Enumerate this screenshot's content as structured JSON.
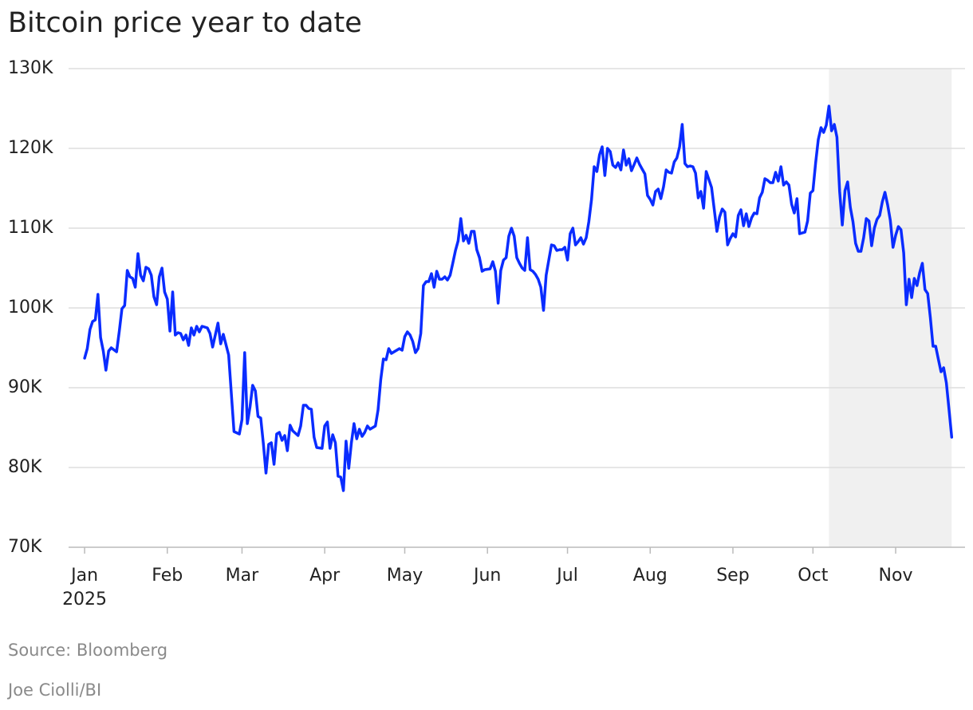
{
  "chart_data": {
    "type": "line",
    "title": "Bitcoin price year to date",
    "source": "Source: Bloomberg",
    "credit": "Joe Ciolli/BI",
    "xtick_year": "2025",
    "color": "#0a2cff",
    "shaded_x": [
      279,
      325
    ],
    "shade_color": "#f0f0f0",
    "grid": true,
    "xlim": [
      -6,
      330
    ],
    "xticks": [
      {
        "value": 0,
        "label": "Jan"
      },
      {
        "value": 31,
        "label": "Feb"
      },
      {
        "value": 59,
        "label": "Mar"
      },
      {
        "value": 90,
        "label": "Apr"
      },
      {
        "value": 120,
        "label": "May"
      },
      {
        "value": 151,
        "label": "Jun"
      },
      {
        "value": 181,
        "label": "Jul"
      },
      {
        "value": 212,
        "label": "Aug"
      },
      {
        "value": 243,
        "label": "Sep"
      },
      {
        "value": 273,
        "label": "Oct"
      },
      {
        "value": 304,
        "label": "Nov"
      }
    ],
    "ylim": [
      70000,
      130000
    ],
    "yticks": [
      {
        "value": 70000,
        "label": "70K"
      },
      {
        "value": 80000,
        "label": "80K"
      },
      {
        "value": 90000,
        "label": "90K"
      },
      {
        "value": 100000,
        "label": "100K"
      },
      {
        "value": 110000,
        "label": "110K"
      },
      {
        "value": 120000,
        "label": "120K"
      },
      {
        "value": 130000,
        "label": "130K"
      }
    ],
    "x": [
      0,
      1,
      2,
      3,
      4,
      5,
      6,
      7,
      8,
      9,
      10,
      12,
      13,
      14,
      15,
      16,
      17,
      18,
      19,
      20,
      21,
      22,
      23,
      24,
      25,
      26,
      27,
      28,
      29,
      30,
      31,
      32,
      33,
      34,
      35,
      36,
      37,
      38,
      39,
      40,
      41,
      42,
      43,
      44,
      46,
      47,
      48,
      50,
      51,
      52,
      54,
      55,
      56,
      58,
      59,
      60,
      61,
      62,
      63,
      64,
      65,
      66,
      67,
      68,
      69,
      70,
      71,
      72,
      73,
      74,
      75,
      76,
      77,
      78,
      80,
      81,
      82,
      83,
      84,
      85,
      86,
      87,
      89,
      90,
      91,
      92,
      93,
      94,
      95,
      96,
      97,
      98,
      99,
      100,
      101,
      102,
      103,
      104,
      105,
      106,
      107,
      109,
      110,
      111,
      112,
      113,
      114,
      115,
      116,
      118,
      119,
      120,
      121,
      122,
      123,
      124,
      125,
      126,
      127,
      128,
      129,
      130,
      131,
      132,
      133,
      134,
      135,
      136,
      137,
      138,
      139,
      140,
      141,
      142,
      143,
      144,
      145,
      146,
      147,
      148,
      149,
      150,
      152,
      153,
      154,
      155,
      156,
      157,
      158,
      159,
      160,
      161,
      162,
      163,
      164,
      165,
      166,
      167,
      168,
      169,
      170,
      171,
      172,
      173,
      174,
      175,
      176,
      177,
      178,
      179,
      180,
      181,
      182,
      183,
      184,
      185,
      186,
      187,
      188,
      189,
      190,
      191,
      192,
      193,
      194,
      195,
      196,
      197,
      198,
      199,
      200,
      201,
      202,
      203,
      204,
      205,
      206,
      207,
      208,
      209,
      210,
      211,
      212,
      213,
      214,
      215,
      216,
      217,
      218,
      219,
      220,
      221,
      222,
      223,
      224,
      225,
      226,
      227,
      228,
      229,
      230,
      231,
      232,
      233,
      235,
      236,
      237,
      238,
      239,
      240,
      241,
      242,
      243,
      244,
      245,
      246,
      247,
      248,
      249,
      250,
      251,
      252,
      253,
      254,
      255,
      256,
      257,
      258,
      259,
      260,
      261,
      262,
      263,
      264,
      265,
      266,
      267,
      268,
      269,
      270,
      271,
      272,
      273,
      274,
      275,
      276,
      277,
      278,
      279,
      280,
      281,
      282,
      283,
      284,
      285,
      286,
      287,
      288,
      289,
      290,
      291,
      292,
      293,
      294,
      295,
      296,
      297,
      298,
      299,
      300,
      301,
      302,
      303,
      304,
      305,
      306,
      307,
      308,
      309,
      310,
      311,
      312,
      313,
      314,
      315,
      316,
      317,
      318,
      319,
      320,
      321,
      322,
      323,
      324,
      325
    ],
    "values": [
      93700,
      94900,
      97300,
      98300,
      98500,
      101700,
      96300,
      94600,
      92200,
      94600,
      95000,
      94500,
      97100,
      99900,
      100300,
      104700,
      103900,
      103700,
      102600,
      106800,
      104100,
      103400,
      105100,
      104900,
      104100,
      101400,
      100400,
      103900,
      105000,
      102000,
      101100,
      97100,
      102000,
      96600,
      96900,
      96800,
      96000,
      96600,
      95300,
      97500,
      96600,
      97700,
      97000,
      97700,
      97500,
      96800,
      95100,
      98100,
      95500,
      96700,
      94100,
      89200,
      84500,
      84200,
      86000,
      94400,
      85500,
      87600,
      90300,
      89600,
      86400,
      86200,
      83000,
      79300,
      82900,
      83100,
      80400,
      84200,
      84400,
      83400,
      84000,
      82100,
      85300,
      84600,
      84000,
      85200,
      87800,
      87800,
      87400,
      87300,
      83800,
      82500,
      82400,
      85200,
      85700,
      82400,
      84100,
      83100,
      78900,
      78800,
      77100,
      83300,
      79900,
      83100,
      85500,
      83600,
      84800,
      83900,
      84400,
      85200,
      84800,
      85200,
      87200,
      91000,
      93600,
      93500,
      94900,
      94300,
      94500,
      94900,
      94700,
      96400,
      97000,
      96600,
      95800,
      94400,
      94900,
      96800,
      102800,
      103300,
      103300,
      104300,
      102600,
      104600,
      103600,
      103600,
      103900,
      103500,
      104100,
      105600,
      107200,
      108400,
      111200,
      108400,
      109100,
      108100,
      109600,
      109600,
      107300,
      106300,
      104600,
      104800,
      104900,
      105800,
      104600,
      100600,
      104700,
      106000,
      106300,
      109000,
      110000,
      109000,
      106300,
      105600,
      105000,
      104700,
      108800,
      104800,
      104600,
      104200,
      103600,
      102600,
      99700,
      104100,
      106000,
      107900,
      107800,
      107200,
      107300,
      107300,
      107600,
      106000,
      109300,
      110000,
      107900,
      108300,
      108800,
      108000,
      108800,
      110800,
      113600,
      117700,
      117100,
      119200,
      120200,
      116600,
      120000,
      119600,
      117900,
      117600,
      118200,
      117300,
      119800,
      117900,
      118700,
      117200,
      118000,
      118800,
      118000,
      117400,
      116800,
      114100,
      113600,
      112900,
      114600,
      114900,
      113700,
      115200,
      117300,
      117000,
      116900,
      118300,
      118800,
      120200,
      123000,
      118100,
      117700,
      117800,
      117700,
      116900,
      113800,
      114600,
      112500,
      117100,
      115100,
      112400,
      109600,
      111400,
      112400,
      112000,
      107900,
      108700,
      109300,
      108900,
      111600,
      112300,
      110300,
      111800,
      110200,
      111300,
      111900,
      111800,
      113800,
      114500,
      116200,
      116000,
      115700,
      115700,
      117000,
      115900,
      117700,
      115400,
      115800,
      115400,
      113000,
      111900,
      113700,
      109300,
      109400,
      109500,
      110900,
      114400,
      114700,
      118200,
      121100,
      122600,
      122000,
      122900,
      125300,
      122200,
      123000,
      121400,
      114600,
      110400,
      114700,
      115800,
      112600,
      110800,
      108100,
      107100,
      107100,
      108800,
      111200,
      110900,
      107800,
      110000,
      111100,
      111600,
      113300,
      114500,
      112900,
      111000,
      107600,
      109100,
      110200,
      109800,
      106900,
      100400,
      103600,
      101300,
      103700,
      102800,
      104400,
      105600,
      102300,
      101800,
      98800,
      95200,
      95200,
      93600,
      92000,
      92500,
      90600,
      87300,
      83800
    ]
  }
}
